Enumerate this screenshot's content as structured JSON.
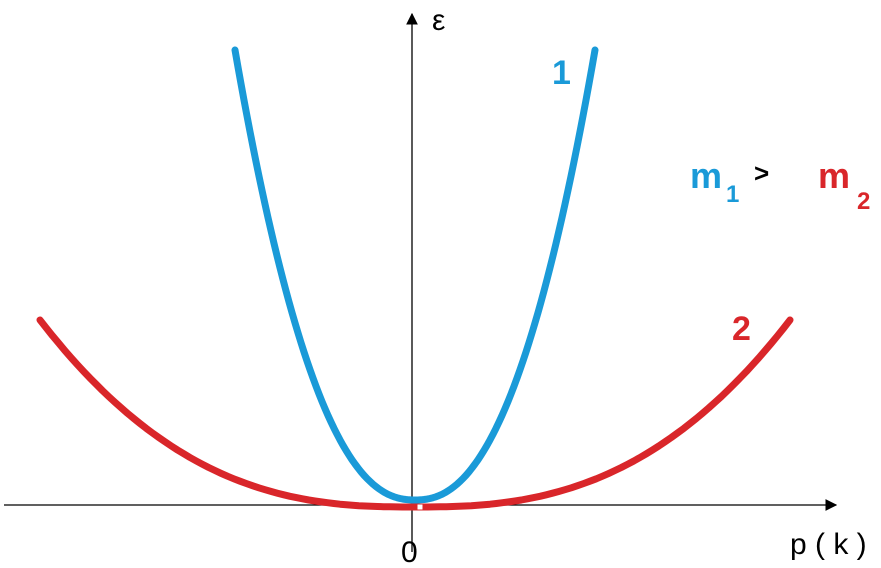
{
  "axes": {
    "y_label": "ε",
    "x_label": "p ( k )",
    "origin_label": "0"
  },
  "curves": [
    {
      "label": "1",
      "color": "#1a9ad8"
    },
    {
      "label": "2",
      "color": "#d9262a"
    }
  ],
  "relation": {
    "left_mass": "m",
    "left_sub": "1",
    "operator": ">",
    "right_mass": "m",
    "right_sub": "2"
  }
}
